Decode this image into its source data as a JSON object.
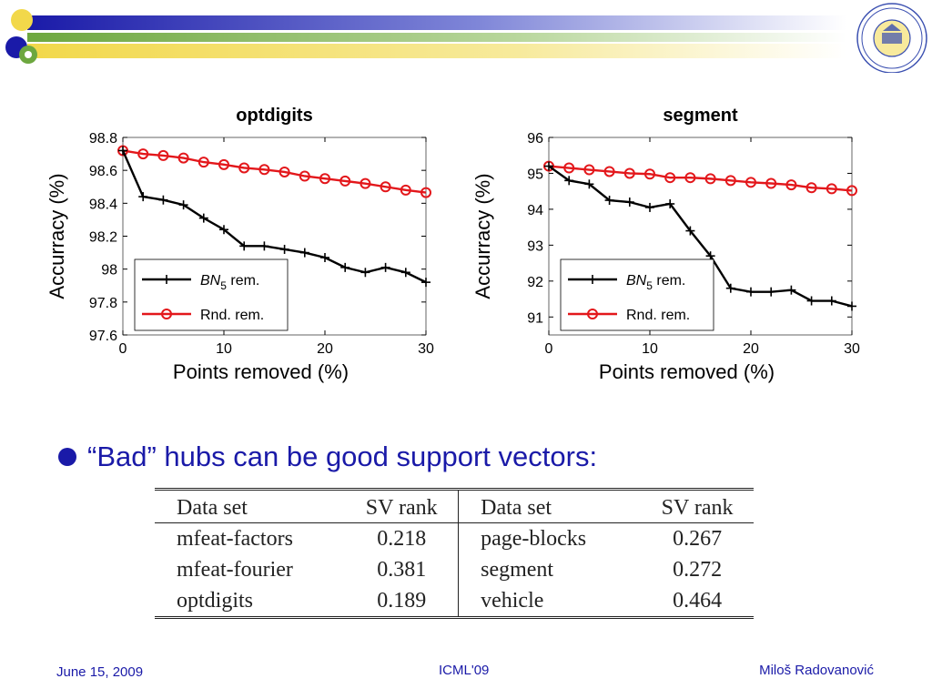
{
  "banner": {
    "colors": [
      "#f2d84a",
      "#1a1aa8",
      "#6da73f"
    ],
    "logo_icon": "university-seal-icon"
  },
  "chart_data": [
    {
      "type": "line",
      "title": "optdigits",
      "xlabel": "Points removed (%)",
      "ylabel": "Accurracy (%)",
      "xlim": [
        0,
        30
      ],
      "ylim": [
        97.6,
        98.8
      ],
      "xticks": [
        0,
        10,
        20,
        30
      ],
      "xtick_labels": [
        "0",
        "10",
        "20",
        "30"
      ],
      "yticks": [
        97.6,
        97.8,
        98,
        98.2,
        98.4,
        98.6,
        98.8
      ],
      "ytick_labels": [
        "97.6",
        "97.8",
        "98",
        "98.2",
        "98.4",
        "98.6",
        "98.8"
      ],
      "grid": false,
      "legend_position": "bottom-left",
      "series": [
        {
          "name": "BN5 rem.",
          "legend_main": "BN",
          "legend_sub": "5",
          "legend_rest": " rem.",
          "color": "#000000",
          "marker": "plus",
          "x": [
            0,
            2,
            4,
            6,
            8,
            10,
            12,
            14,
            16,
            18,
            20,
            22,
            24,
            26,
            28,
            30
          ],
          "y": [
            98.72,
            98.44,
            98.42,
            98.39,
            98.31,
            98.24,
            98.14,
            98.14,
            98.12,
            98.1,
            98.07,
            98.01,
            97.98,
            98.01,
            97.98,
            97.92
          ]
        },
        {
          "name": "Rnd. rem.",
          "color": "#e3171b",
          "marker": "circle",
          "x": [
            0,
            2,
            4,
            6,
            8,
            10,
            12,
            14,
            16,
            18,
            20,
            22,
            24,
            26,
            28,
            30
          ],
          "y": [
            98.72,
            98.7,
            98.69,
            98.675,
            98.65,
            98.635,
            98.615,
            98.605,
            98.59,
            98.565,
            98.55,
            98.535,
            98.52,
            98.5,
            98.48,
            98.465
          ]
        }
      ]
    },
    {
      "type": "line",
      "title": "segment",
      "xlabel": "Points removed (%)",
      "ylabel": "Accurracy (%)",
      "xlim": [
        0,
        30
      ],
      "ylim": [
        90.5,
        96
      ],
      "xticks": [
        0,
        10,
        20,
        30
      ],
      "xtick_labels": [
        "0",
        "10",
        "20",
        "30"
      ],
      "yticks": [
        91,
        92,
        93,
        94,
        95,
        96
      ],
      "ytick_labels": [
        "91",
        "92",
        "93",
        "94",
        "95",
        "96"
      ],
      "grid": false,
      "legend_position": "bottom-left",
      "series": [
        {
          "name": "BN5 rem.",
          "legend_main": "BN",
          "legend_sub": "5",
          "legend_rest": " rem.",
          "color": "#000000",
          "marker": "plus",
          "x": [
            0,
            2,
            4,
            6,
            8,
            10,
            12,
            14,
            16,
            18,
            20,
            22,
            24,
            26,
            28,
            30
          ],
          "y": [
            95.2,
            94.8,
            94.7,
            94.25,
            94.2,
            94.05,
            94.15,
            93.4,
            92.7,
            91.8,
            91.7,
            91.7,
            91.75,
            91.45,
            91.45,
            91.3
          ]
        },
        {
          "name": "Rnd. rem.",
          "color": "#e3171b",
          "marker": "circle",
          "x": [
            0,
            2,
            4,
            6,
            8,
            10,
            12,
            14,
            16,
            18,
            20,
            22,
            24,
            26,
            28,
            30
          ],
          "y": [
            95.2,
            95.15,
            95.1,
            95.05,
            95.0,
            94.98,
            94.88,
            94.88,
            94.85,
            94.8,
            94.75,
            94.72,
            94.68,
            94.6,
            94.57,
            94.52
          ]
        }
      ]
    }
  ],
  "bullet": {
    "text": "“Bad” hubs can be good support vectors:"
  },
  "sv_table": {
    "headers": [
      "Data set",
      "SV rank",
      "Data set",
      "SV rank"
    ],
    "rows": [
      [
        "mfeat-factors",
        "0.218",
        "page-blocks",
        "0.267"
      ],
      [
        "mfeat-fourier",
        "0.381",
        "segment",
        "0.272"
      ],
      [
        "optdigits",
        "0.189",
        "vehicle",
        "0.464"
      ]
    ]
  },
  "footer": {
    "date": "June 15, 2009",
    "conference": "ICML'09",
    "author": "Miloš Radovanović"
  }
}
